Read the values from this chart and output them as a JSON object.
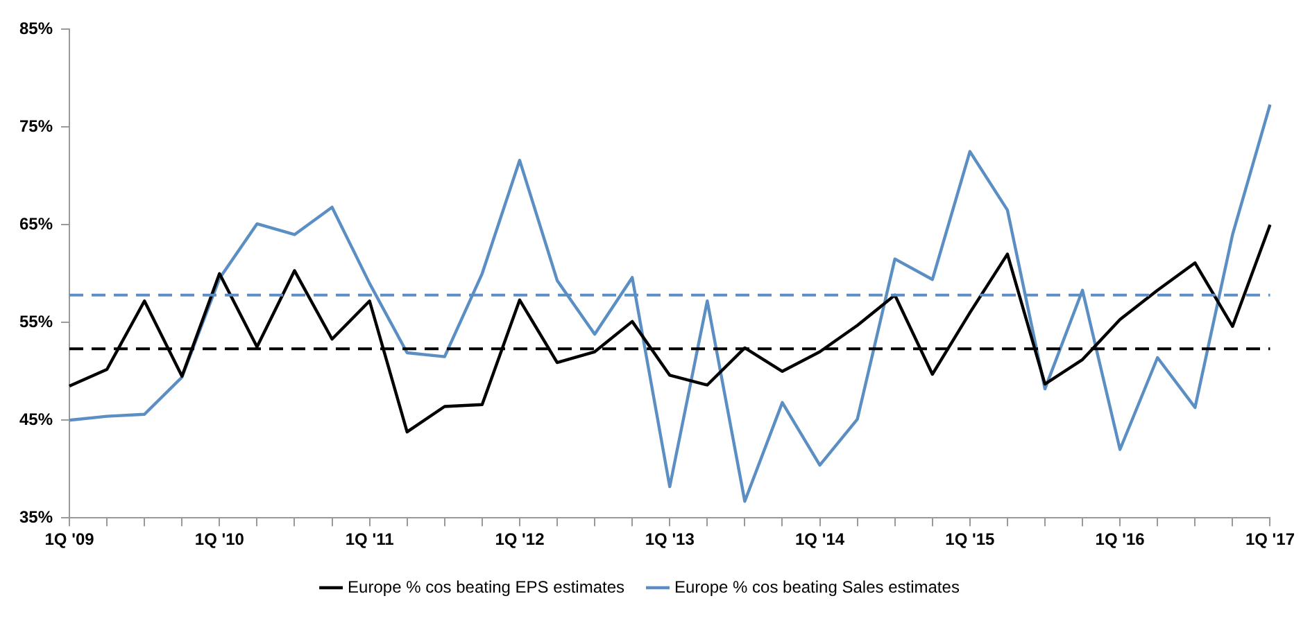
{
  "chart_data": {
    "type": "line",
    "categories": [
      "1Q '09",
      null,
      null,
      null,
      "1Q '10",
      null,
      null,
      null,
      "1Q '11",
      null,
      null,
      null,
      "1Q '12",
      null,
      null,
      null,
      "1Q '13",
      null,
      null,
      null,
      "1Q '14",
      null,
      null,
      null,
      "1Q '15",
      null,
      null,
      null,
      "1Q '16",
      null,
      null,
      null,
      "1Q '17"
    ],
    "series": [
      {
        "name": "Europe % cos beating EPS estimates",
        "color": "#000000",
        "values": [
          48.5,
          50.2,
          57.2,
          49.5,
          60.0,
          52.5,
          60.3,
          53.3,
          57.2,
          43.8,
          46.4,
          46.6,
          57.3,
          50.9,
          52.0,
          55.1,
          49.6,
          48.6,
          52.4,
          50.0,
          52.0,
          54.7,
          57.8,
          49.7,
          56.0,
          62.0,
          48.7,
          51.2,
          55.3,
          58.3,
          61.1,
          54.6,
          65.0
        ]
      },
      {
        "name": "Europe % cos beating Sales estimates",
        "color": "#5b8fc4",
        "values": [
          45.0,
          45.4,
          45.6,
          49.4,
          59.5,
          65.1,
          64.0,
          66.8,
          59.0,
          51.9,
          51.5,
          60.0,
          71.6,
          59.3,
          53.8,
          59.6,
          38.2,
          57.2,
          36.7,
          46.8,
          40.4,
          45.1,
          61.5,
          59.4,
          72.5,
          66.5,
          48.2,
          58.3,
          42.0,
          51.4,
          46.3,
          64.0,
          77.3
        ]
      }
    ],
    "ylim": [
      35,
      85
    ],
    "yticks": [
      {
        "value": 35,
        "label": "35%"
      },
      {
        "value": 45,
        "label": "45%"
      },
      {
        "value": 55,
        "label": "55%"
      },
      {
        "value": 65,
        "label": "65%"
      },
      {
        "value": 75,
        "label": "75%"
      },
      {
        "value": 85,
        "label": "85%"
      }
    ],
    "ref_lines": [
      {
        "axis": "y",
        "value": 57.8,
        "color": "#5b8fc4",
        "line_style": "dashed"
      },
      {
        "axis": "y",
        "value": 52.3,
        "color": "#000000",
        "line_style": "dashed"
      }
    ],
    "grid": false,
    "legend": "bottom",
    "marker": "none",
    "line_style": "solid"
  }
}
